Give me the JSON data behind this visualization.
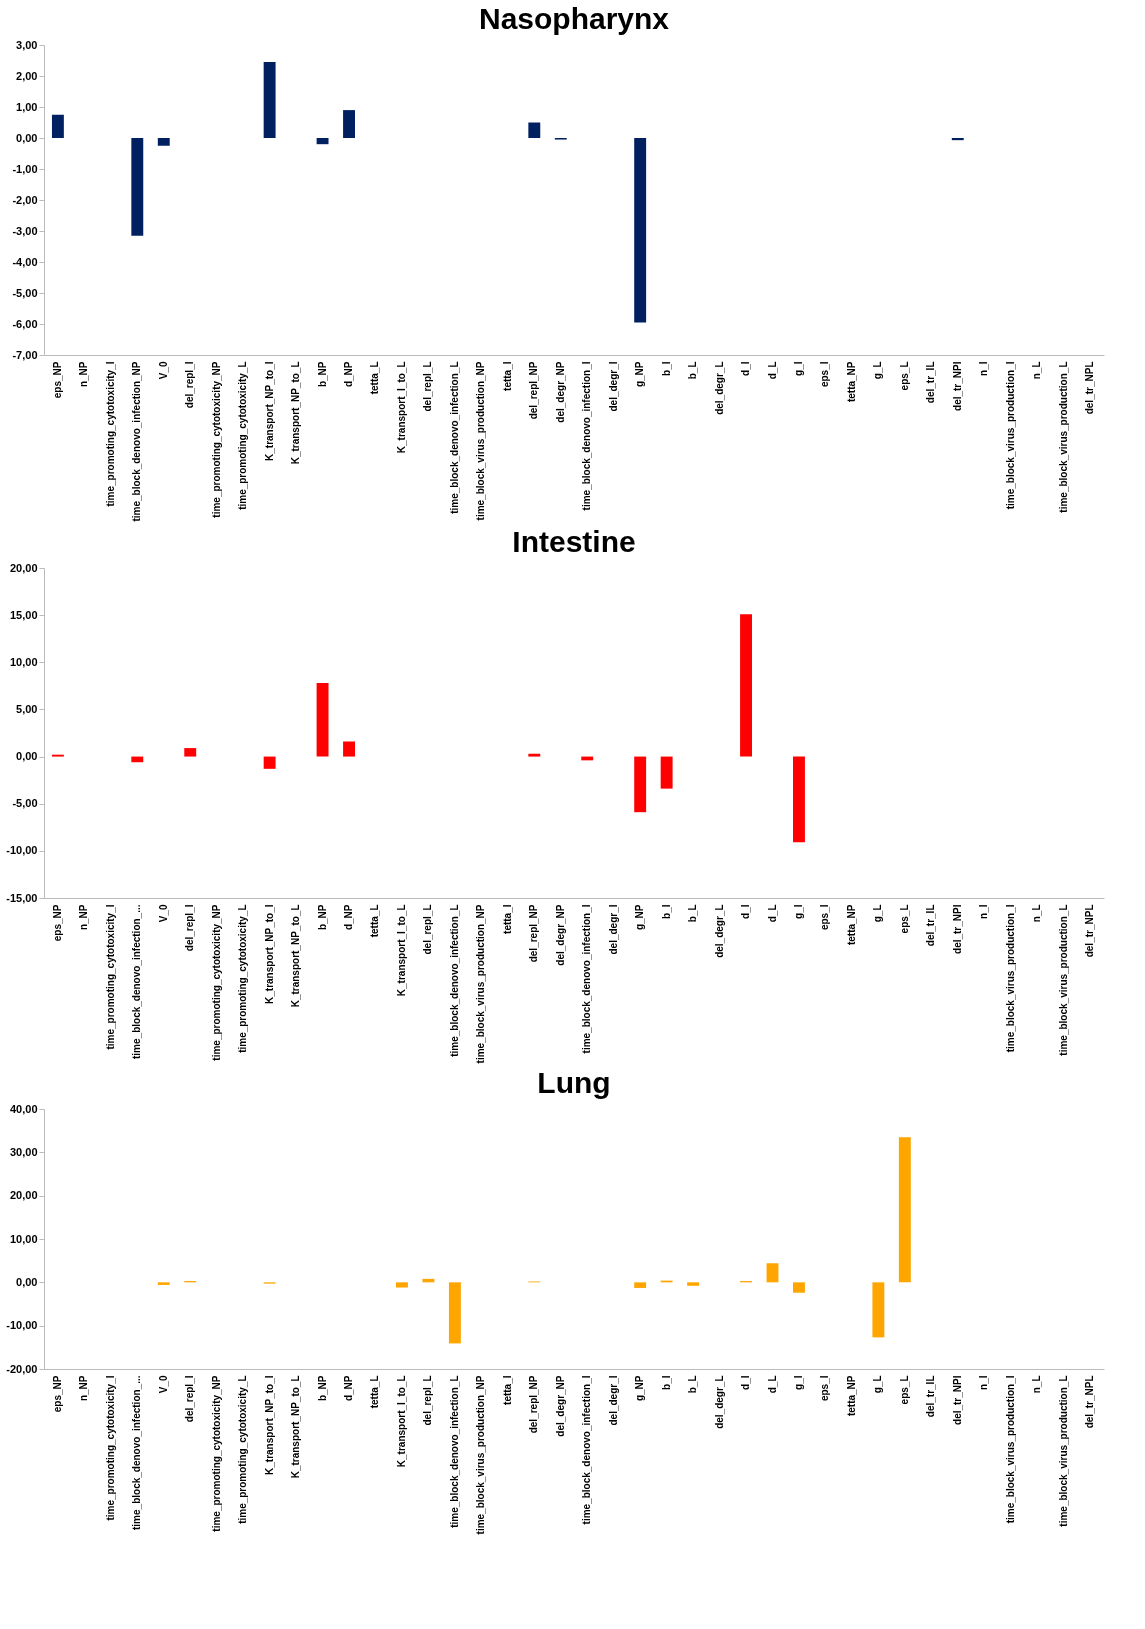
{
  "chart_data": [
    {
      "type": "bar",
      "title": "Nasopharynx",
      "color": "#002060",
      "categories": [
        "eps_NP",
        "n_NP",
        "time_promoting_cytotoxicity_I",
        "time_block_denovo_infection_NP",
        "V_0",
        "del_repl_I",
        "time_promoting_cytotoxicity_NP",
        "time_promoting_cytotoxicity_L",
        "K_transport_NP_to_I",
        "K_transport_NP_to_L",
        "b_NP",
        "d_NP",
        "tetta_L",
        "K_transport_I_to_L",
        "del_repl_L",
        "time_block_denovo_infection_L",
        "time_block_virus_production_NP",
        "tetta_I",
        "del_repl_NP",
        "del_degr_NP",
        "time_block_denovo_infection_I",
        "del_degr_I",
        "g_NP",
        "b_I",
        "b_L",
        "del_degr_L",
        "d_I",
        "d_L",
        "g_I",
        "eps_I",
        "tetta_NP",
        "g_L",
        "eps_L",
        "del_tr_IL",
        "del_tr_NPI",
        "n_I",
        "time_block_virus_production_I",
        "n_L",
        "time_block_virus_production_L",
        "del_tr_NPL"
      ],
      "values": [
        0.75,
        0,
        0,
        -3.15,
        -0.25,
        0,
        0,
        0,
        2.45,
        0,
        -0.2,
        0.9,
        0,
        0,
        0,
        0,
        0,
        0,
        0.5,
        -0.05,
        0,
        0,
        -5.95,
        0,
        0,
        0,
        0,
        0,
        0,
        0,
        0,
        0,
        0,
        0,
        -0.07,
        0,
        0,
        0,
        0,
        0
      ],
      "ylim": [
        -7,
        3
      ],
      "yticks": [
        {
          "value": 3,
          "label": "3,00"
        },
        {
          "value": 2,
          "label": "2,00"
        },
        {
          "value": 1,
          "label": "1,00"
        },
        {
          "value": 0,
          "label": "0,00"
        },
        {
          "value": -1,
          "label": "-1,00"
        },
        {
          "value": -2,
          "label": "-2,00"
        },
        {
          "value": -3,
          "label": "-3,00"
        },
        {
          "value": -4,
          "label": "-4,00"
        },
        {
          "value": -5,
          "label": "-5,00"
        },
        {
          "value": -6,
          "label": "-6,00"
        },
        {
          "value": -7,
          "label": "-7,00"
        }
      ]
    },
    {
      "type": "bar",
      "title": "Intestine",
      "color": "#ff0000",
      "categories": [
        "eps_NP",
        "n_NP",
        "time_promoting_cytotoxicity_I",
        "time_block_denovo_infection_...",
        "V_0",
        "del_repl_I",
        "time_promoting_cytotoxicity_NP",
        "time_promoting_cytotoxicity_L",
        "K_transport_NP_to_I",
        "K_transport_NP_to_L",
        "b_NP",
        "d_NP",
        "tetta_L",
        "K_transport_I_to_L",
        "del_repl_L",
        "time_block_denovo_infection_L",
        "time_block_virus_production_NP",
        "tetta_I",
        "del_repl_NP",
        "del_degr_NP",
        "time_block_denovo_infection_I",
        "del_degr_I",
        "g_NP",
        "b_I",
        "b_L",
        "del_degr_L",
        "d_I",
        "d_L",
        "g_I",
        "eps_I",
        "tetta_NP",
        "g_L",
        "eps_L",
        "del_tr_IL",
        "del_tr_NPI",
        "n_I",
        "time_block_virus_production_I",
        "n_L",
        "time_block_virus_production_L",
        "del_tr_NPL"
      ],
      "values": [
        0.2,
        0,
        0,
        -0.6,
        0,
        0.9,
        0,
        0,
        -1.3,
        0,
        7.8,
        1.6,
        0,
        0,
        0,
        0,
        0,
        0,
        0.3,
        0,
        -0.4,
        0,
        -5.9,
        -3.4,
        0,
        0,
        15.1,
        0,
        -9.1,
        0,
        0,
        0,
        0,
        0,
        0,
        0,
        0,
        0,
        0,
        0
      ],
      "ylim": [
        -15,
        20
      ],
      "yticks": [
        {
          "value": 20,
          "label": "20,00"
        },
        {
          "value": 15,
          "label": "15,00"
        },
        {
          "value": 10,
          "label": "10,00"
        },
        {
          "value": 5,
          "label": "5,00"
        },
        {
          "value": 0,
          "label": "0,00"
        },
        {
          "value": -5,
          "label": "-5,00"
        },
        {
          "value": -10,
          "label": "-10,00"
        },
        {
          "value": -15,
          "label": "-15,00"
        }
      ]
    },
    {
      "type": "bar",
      "title": "Lung",
      "color": "#ffa500",
      "categories": [
        "eps_NP",
        "n_NP",
        "time_promoting_cytotoxicity_I",
        "time_block_denovo_infection_...",
        "V_0",
        "del_repl_I",
        "time_promoting_cytotoxicity_NP",
        "time_promoting_cytotoxicity_L",
        "K_transport_NP_to_I",
        "K_transport_NP_to_L",
        "b_NP",
        "d_NP",
        "tetta_L",
        "K_transport_I_to_L",
        "del_repl_L",
        "time_block_denovo_infection_L",
        "time_block_virus_production_NP",
        "tetta_I",
        "del_repl_NP",
        "del_degr_NP",
        "time_block_denovo_infection_I",
        "del_degr_I",
        "g_NP",
        "b_I",
        "b_L",
        "del_degr_L",
        "d_I",
        "d_L",
        "g_I",
        "eps_I",
        "tetta_NP",
        "g_L",
        "eps_L",
        "del_tr_IL",
        "del_tr_NPI",
        "n_I",
        "time_block_virus_production_I",
        "n_L",
        "time_block_virus_production_L",
        "del_tr_NPL"
      ],
      "values": [
        0,
        0,
        0,
        0,
        -0.6,
        0.3,
        0,
        0,
        -0.3,
        0,
        0,
        0,
        0,
        -1.2,
        0.8,
        -14.1,
        0,
        0,
        0.2,
        0,
        0,
        0,
        -1.3,
        0.4,
        -0.8,
        0,
        0.3,
        4.4,
        -2.4,
        0,
        0,
        -12.7,
        33.5,
        0,
        0,
        0,
        0,
        0,
        0,
        0
      ],
      "ylim": [
        -20,
        40
      ],
      "yticks": [
        {
          "value": 40,
          "label": "40,00"
        },
        {
          "value": 30,
          "label": "30,00"
        },
        {
          "value": 20,
          "label": "20,00"
        },
        {
          "value": 10,
          "label": "10,00"
        },
        {
          "value": 0,
          "label": "0,00"
        },
        {
          "value": -10,
          "label": "-10,00"
        },
        {
          "value": -20,
          "label": "-20,00"
        }
      ]
    }
  ]
}
